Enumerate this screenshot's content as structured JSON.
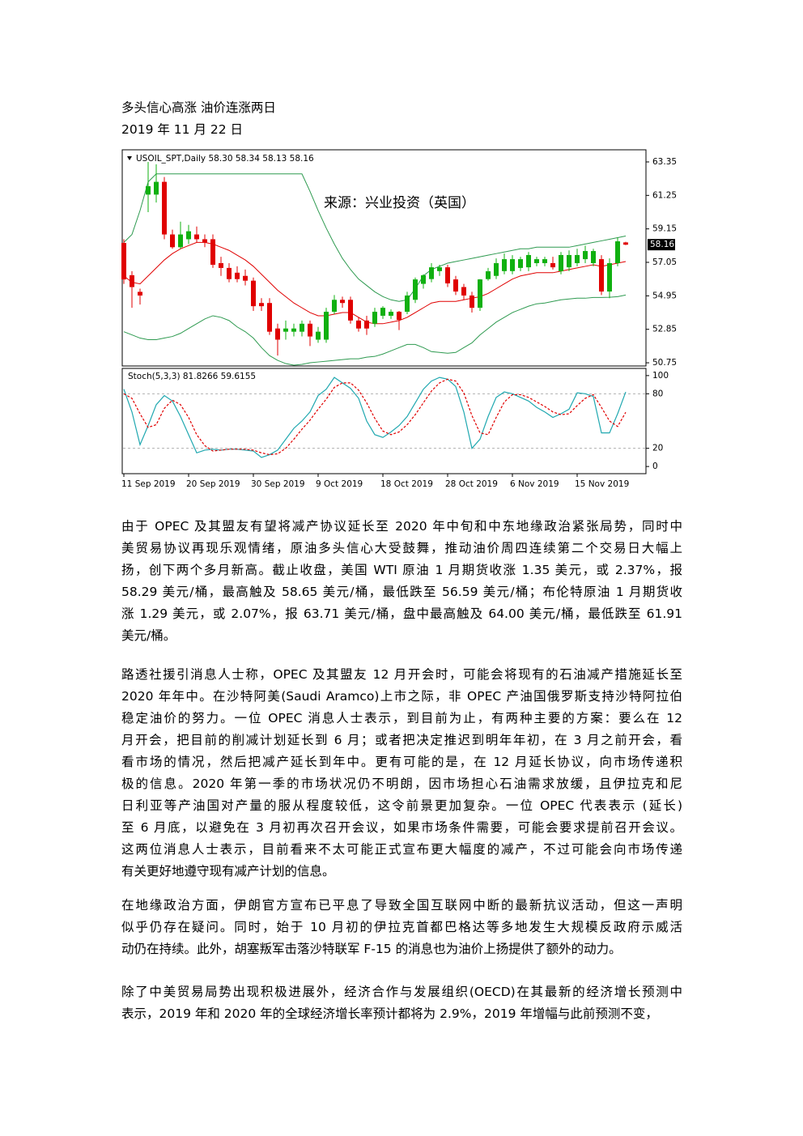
{
  "header": {
    "title": "多头信心高涨  油价连涨两日",
    "date": "2019 年 11 月 22 日"
  },
  "chart_data": [
    {
      "type": "candlestick",
      "title": "USOIL_SPT,Daily  58.30 58.34 58.13 58.16",
      "annotation": "来源：兴业投资（英国）",
      "up_color": "#10b010",
      "down_color": "#e00000",
      "open": [
        58.27,
        56.24,
        55.2,
        61.3,
        61.3,
        62.1,
        58.8,
        58.0,
        58.5,
        58.8,
        58.5,
        58.5,
        57.0,
        56.7,
        56.4,
        56.2,
        55.9,
        54.5,
        54.5,
        52.9,
        52.7,
        52.7,
        52.7,
        53.2,
        52.2,
        52.2,
        53.95,
        54.7,
        54.7,
        53.4,
        53.4,
        53.2,
        53.7,
        53.7,
        53.95,
        53.95,
        54.7,
        55.7,
        56.0,
        56.5,
        56.74,
        55.98,
        55.5,
        54.97,
        54.2,
        56.0,
        56.2,
        56.5,
        56.5,
        56.7,
        56.74,
        57.0,
        57.0,
        57.0,
        56.49,
        56.74,
        57.0,
        57.25,
        57.0,
        57.25,
        55.22,
        57.0,
        58.3
      ],
      "high": [
        58.5,
        56.5,
        55.4,
        63.35,
        63.2,
        62.4,
        59.1,
        59.6,
        59.4,
        59.3,
        58.8,
        58.8,
        57.4,
        57.0,
        56.8,
        56.6,
        56.1,
        54.8,
        54.8,
        53.2,
        53.4,
        53.2,
        53.4,
        53.4,
        53.0,
        54.2,
        55.0,
        54.9,
        54.9,
        53.6,
        53.7,
        54.2,
        54.3,
        54.1,
        54.0,
        55.2,
        56.1,
        56.3,
        57.0,
        56.9,
        56.9,
        56.2,
        55.7,
        55.2,
        56.0,
        56.7,
        57.3,
        57.6,
        57.5,
        57.4,
        57.7,
        57.4,
        57.4,
        57.4,
        57.7,
        57.8,
        57.9,
        58.1,
        57.9,
        57.5,
        57.3,
        58.6,
        58.34
      ],
      "low": [
        55.7,
        54.2,
        54.4,
        60.2,
        60.8,
        58.5,
        57.9,
        57.9,
        58.2,
        58.3,
        58.0,
        56.7,
        56.2,
        55.8,
        55.8,
        55.6,
        54.0,
        54.0,
        52.5,
        51.2,
        52.2,
        52.4,
        52.4,
        51.8,
        52.0,
        52.0,
        53.8,
        54.2,
        53.2,
        52.7,
        52.5,
        53.0,
        53.5,
        53.5,
        52.8,
        53.8,
        54.5,
        55.4,
        55.8,
        56.2,
        55.5,
        55.0,
        54.7,
        53.9,
        54.0,
        55.9,
        56.0,
        56.3,
        56.3,
        56.5,
        56.5,
        56.8,
        56.8,
        56.6,
        56.3,
        56.5,
        56.8,
        57.0,
        56.8,
        55.0,
        54.8,
        56.8,
        58.13
      ],
      "close": [
        55.98,
        55.5,
        54.97,
        61.83,
        62.1,
        58.8,
        58.0,
        58.8,
        59.0,
        58.5,
        58.3,
        56.9,
        56.7,
        56.0,
        56.0,
        55.9,
        54.3,
        54.3,
        52.7,
        52.2,
        52.9,
        52.9,
        53.2,
        52.4,
        52.7,
        53.95,
        54.7,
        54.5,
        53.4,
        52.9,
        52.9,
        53.95,
        54.2,
        53.95,
        53.44,
        54.97,
        55.98,
        56.24,
        56.74,
        56.74,
        55.73,
        55.22,
        54.97,
        54.2,
        55.98,
        56.49,
        57.0,
        57.25,
        57.25,
        57.25,
        57.51,
        57.25,
        57.25,
        56.74,
        57.51,
        57.51,
        57.51,
        57.76,
        57.76,
        55.22,
        57.0,
        58.37,
        58.16
      ],
      "overlays": [
        {
          "color": "#2e9a50",
          "values": [
            58.3,
            58.8,
            60.3,
            62.1,
            62.6,
            62.6,
            62.6,
            62.6,
            62.6,
            62.6,
            62.6,
            62.6,
            62.6,
            62.6,
            62.6,
            62.6,
            62.6,
            62.6,
            62.6,
            62.6,
            62.6,
            62.6,
            62.6,
            61.5,
            60.3,
            59.2,
            58.2,
            57.3,
            56.6,
            56.0,
            55.6,
            55.2,
            54.9,
            54.7,
            54.6,
            54.7,
            55.4,
            56.2,
            56.6,
            56.8,
            57.0,
            57.1,
            57.2,
            57.3,
            57.4,
            57.5,
            57.6,
            57.7,
            57.8,
            57.9,
            57.9,
            58.0,
            58.0,
            58.0,
            58.0,
            58.0,
            58.1,
            58.2,
            58.3,
            58.4,
            58.5,
            58.6,
            58.7
          ]
        },
        {
          "color": "#e00000",
          "values": [
            56.2,
            55.8,
            55.7,
            56.2,
            56.7,
            57.2,
            57.6,
            57.9,
            58.1,
            58.3,
            58.3,
            58.2,
            58.0,
            57.8,
            57.5,
            57.2,
            56.8,
            56.3,
            55.8,
            55.3,
            54.9,
            54.5,
            54.2,
            53.9,
            53.7,
            53.7,
            53.8,
            53.9,
            53.9,
            53.6,
            53.3,
            53.2,
            53.2,
            53.3,
            53.4,
            53.6,
            53.9,
            54.2,
            54.5,
            54.6,
            54.6,
            54.6,
            54.7,
            54.8,
            54.9,
            55.1,
            55.4,
            55.7,
            56.0,
            56.2,
            56.3,
            56.4,
            56.4,
            56.4,
            56.5,
            56.6,
            56.7,
            56.8,
            56.9,
            56.8,
            56.9,
            57.0,
            57.1
          ]
        },
        {
          "color": "#2e9a50",
          "values": [
            52.7,
            52.5,
            52.3,
            52.2,
            52.2,
            52.3,
            52.4,
            52.6,
            52.9,
            53.2,
            53.5,
            53.7,
            53.6,
            53.4,
            53.0,
            52.7,
            52.3,
            51.7,
            51.2,
            50.9,
            50.7,
            50.6,
            50.65,
            50.75,
            50.8,
            50.85,
            50.9,
            50.95,
            51.0,
            51.0,
            51.1,
            51.15,
            51.3,
            51.5,
            51.7,
            51.9,
            51.9,
            51.7,
            51.45,
            51.4,
            51.35,
            51.4,
            51.7,
            52.0,
            52.5,
            52.9,
            53.3,
            53.6,
            53.9,
            54.1,
            54.3,
            54.45,
            54.5,
            54.6,
            54.7,
            54.75,
            54.8,
            54.8,
            54.85,
            54.85,
            54.86,
            54.9,
            55.0
          ]
        }
      ],
      "ylim": [
        50.6,
        64.06
      ],
      "yticks": [
        63.35,
        61.25,
        59.15,
        57.05,
        54.95,
        52.85,
        50.75
      ]
    },
    {
      "type": "line",
      "title": "Stoch(5,3,3) 81.8266 59.6155",
      "categories": [
        "11 Sep 2019",
        null,
        null,
        null,
        null,
        null,
        null,
        null,
        "20 Sep 2019",
        null,
        null,
        null,
        null,
        null,
        null,
        null,
        "30 Sep 2019",
        null,
        null,
        null,
        null,
        null,
        null,
        null,
        "9 Oct 2019",
        null,
        null,
        null,
        null,
        null,
        null,
        null,
        "18 Oct 2019",
        null,
        null,
        null,
        null,
        null,
        null,
        null,
        "28 Oct 2019",
        null,
        null,
        null,
        null,
        null,
        null,
        null,
        "6 Nov 2019",
        null,
        null,
        null,
        null,
        null,
        null,
        null,
        "15 Nov 2019",
        null,
        null,
        null,
        null,
        null,
        null
      ],
      "series": [
        {
          "color": "#20a8b0",
          "dashed": false,
          "values": [
            85,
            60,
            24,
            45,
            68,
            78,
            72,
            55,
            35,
            15,
            18,
            19,
            18,
            19,
            19,
            18,
            17,
            10,
            13,
            18,
            30,
            42,
            50,
            60,
            78,
            85,
            98,
            92,
            86,
            75,
            50,
            35,
            32,
            38,
            45,
            55,
            70,
            85,
            94,
            98,
            96,
            88,
            60,
            20,
            30,
            55,
            76,
            82,
            80,
            76,
            72,
            65,
            60,
            54,
            58,
            63,
            81,
            80,
            77,
            37,
            37,
            58,
            82
          ]
        },
        {
          "color": "#e00000",
          "dashed": true,
          "values": [
            80,
            75,
            58,
            43,
            46,
            64,
            73,
            68,
            54,
            35,
            23,
            17,
            18,
            19,
            19,
            19,
            18,
            15,
            13,
            14,
            20,
            30,
            41,
            51,
            63,
            74,
            87,
            92,
            92,
            84,
            70,
            53,
            39,
            35,
            38,
            46,
            57,
            70,
            83,
            92,
            96,
            94,
            81,
            56,
            37,
            35,
            54,
            71,
            79,
            79,
            76,
            71,
            66,
            60,
            57,
            58,
            67,
            75,
            79,
            65,
            50,
            44,
            59.6
          ]
        }
      ],
      "levels": [
        20,
        80
      ],
      "ylim": [
        -7,
        107
      ],
      "yticks": [
        100,
        80,
        20,
        0
      ]
    }
  ],
  "paragraphs": [
    [
      "由于 OPEC 及其盟友有望将减产协议延长至 2020 年中旬和中东地缘政治紧张局势，同时中",
      "美贸易协议再现乐观情绪，原油多头信心大受鼓舞，推动油价周四连续第二个交易日大幅上",
      "扬，创下两个多月新高。截止收盘，美国 WTI 原油 1 月期货收涨 1.35 美元，或 2.37%，报",
      "58.29 美元/桶，最高触及 58.65 美元/桶，最低跌至 56.59 美元/桶；布伦特原油 1 月期货收",
      "涨 1.29 美元，或 2.07%，报 63.71 美元/桶，盘中最高触及 64.00 美元/桶，最低跌至 61.91",
      "美元/桶。"
    ],
    [
      "路透社援引消息人士称，OPEC 及其盟友 12 月开会时，可能会将现有的石油减产措施延长至",
      "2020 年年中。在沙特阿美(Saudi Aramco)上市之际，非 OPEC 产油国俄罗斯支持沙特阿拉伯",
      "稳定油价的努力。一位 OPEC 消息人士表示，到目前为止，有两种主要的方案：要么在 12",
      "月开会，把目前的削减计划延长到 6 月；或者把决定推迟到明年年初，在 3 月之前开会，看",
      "看市场的情况，然后把减产延长到年中。更有可能的是，在 12 月延长协议，向市场传递积",
      "极的信息。2020 年第一季的市场状况仍不明朗，因市场担心石油需求放缓，且伊拉克和尼",
      "日利亚等产油国对产量的服从程度较低，这令前景更加复杂。一位 OPEC 代表表示 (延长)",
      "至 6 月底，以避免在 3 月初再次召开会议，如果市场条件需要，可能会要求提前召开会议。",
      "这两位消息人士表示，目前看来不太可能正式宣布更大幅度的减产，不过可能会向市场传递",
      "有关更好地遵守现有减产计划的信息。"
    ],
    [
      "在地缘政治方面，伊朗官方宣布已平息了导致全国互联网中断的最新抗议活动，但这一声明",
      "似乎仍存在疑问。同时，始于 10 月初的伊拉克首都巴格达等多地发生大规模反政府示威活",
      "动仍在持续。此外，胡塞叛军击落沙特联军 F-15 的消息也为油价上扬提供了额外的动力。"
    ],
    [
      "除了中美贸易局势出现积极进展外，经济合作与发展组织(OECD)在其最新的经济增长预测中",
      "表示，2019 年和 2020 年的全球经济增长率预计都将为 2.9%，2019 年增幅与此前预测不变，"
    ]
  ]
}
